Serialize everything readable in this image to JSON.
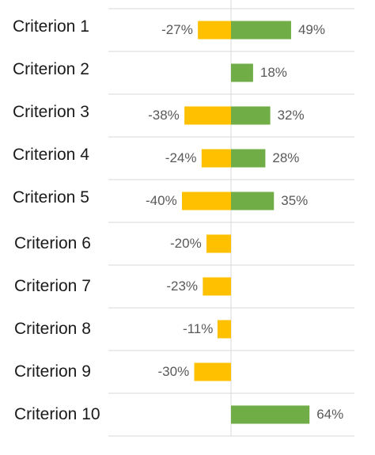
{
  "chart_data": {
    "type": "bar",
    "orientation": "horizontal",
    "stacked": "diverging",
    "categories": [
      "Criterion 1",
      "Criterion 2",
      "Criterion 3",
      "Criterion 4",
      "Criterion 5",
      "Criterion 6",
      "Criterion 7",
      "Criterion 8",
      "Criterion 9",
      "Criterion 10"
    ],
    "series": [
      {
        "color": "#FFC000",
        "values": [
          -27,
          null,
          -38,
          -24,
          -40,
          -20,
          -23,
          -11,
          -30,
          null
        ],
        "labels": [
          "-27%",
          "",
          "-38%",
          "-24%",
          "-40%",
          "-20%",
          "-23%",
          "-11%",
          "-30%",
          ""
        ]
      },
      {
        "color": "#70AD47",
        "values": [
          49,
          18,
          32,
          28,
          35,
          null,
          null,
          null,
          null,
          64
        ],
        "labels": [
          "49%",
          "18%",
          "32%",
          "28%",
          "35%",
          "",
          "",
          "",
          "",
          "64%"
        ]
      }
    ],
    "value_unit": "%",
    "xlim": [
      -56,
      100
    ],
    "grid": "horizontal",
    "axis_color": "#D9D9D9",
    "title": "",
    "xlabel": "",
    "ylabel": ""
  }
}
